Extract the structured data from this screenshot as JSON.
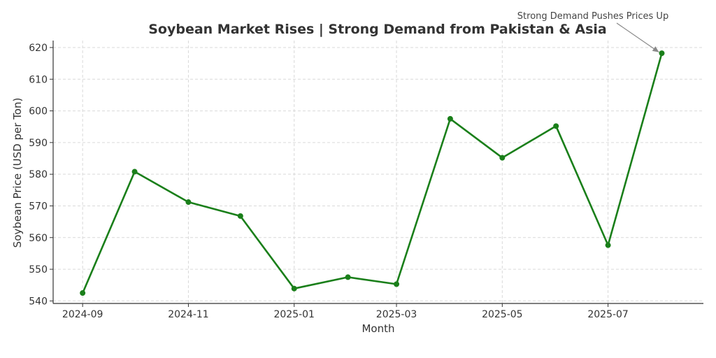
{
  "chart_data": {
    "type": "line",
    "title": "Soybean Market Rises | Strong Demand from Pakistan & Asia",
    "xlabel": "Month",
    "ylabel": "Soybean Price (USD per Ton)",
    "x": [
      "2024-09-01",
      "2024-10-01",
      "2024-11-01",
      "2024-12-01",
      "2025-01-01",
      "2025-02-01",
      "2025-03-01",
      "2025-04-01",
      "2025-05-01",
      "2025-06-01",
      "2025-07-01",
      "2025-08-01"
    ],
    "series": [
      {
        "values": [
          542.5,
          580.8,
          571.2,
          566.8,
          543.9,
          547.5,
          545.3,
          597.5,
          585.2,
          595.2,
          557.6,
          618.2
        ]
      }
    ],
    "x_ticks": [
      "2024-09",
      "2024-11",
      "2025-01",
      "2025-03",
      "2025-05",
      "2025-07"
    ],
    "y_ticks": [
      540,
      550,
      560,
      570,
      580,
      590,
      600,
      610,
      620
    ],
    "xlim": [
      "2024-08-15",
      "2025-08-25"
    ],
    "ylim": [
      539.2,
      622.2
    ],
    "grid": true,
    "line_color": "#1a7f1a",
    "annotation": {
      "text": "Strong Demand Pushes Prices Up",
      "x": "2025-08-01",
      "y": 618.2
    }
  }
}
